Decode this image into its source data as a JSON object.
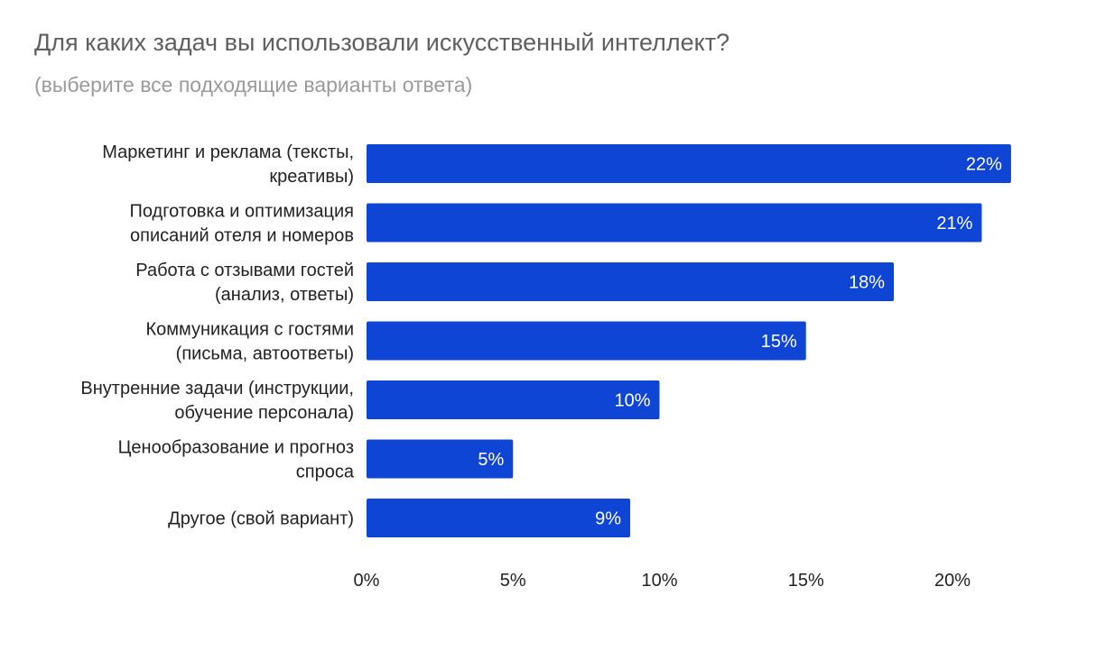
{
  "chart_data": {
    "type": "bar",
    "orientation": "horizontal",
    "title": "Для каких задач вы использовали искусственный интеллект?",
    "subtitle": "(выберите все подходящие варианты ответа)",
    "categories": [
      [
        "Маркетинг и реклама (тексты,",
        "креативы)"
      ],
      [
        "Подготовка и оптимизация",
        "описаний отеля и номеров"
      ],
      [
        "Работа с отзывами гостей",
        "(анализ, ответы)"
      ],
      [
        "Коммуникация с гостями",
        "(письма, автоответы)"
      ],
      [
        "Внутренние задачи (инструкции,",
        "обучение персонала)"
      ],
      [
        "Ценообразование и прогноз",
        "спроса"
      ],
      [
        "Другое (свой вариант)"
      ]
    ],
    "values": [
      22,
      21,
      18,
      15,
      10,
      5,
      9
    ],
    "value_labels": [
      "22%",
      "21%",
      "18%",
      "15%",
      "10%",
      "5%",
      "9%"
    ],
    "x_ticks": [
      0,
      5,
      10,
      15,
      20
    ],
    "x_tick_labels": [
      "0%",
      "5%",
      "10%",
      "15%",
      "20%"
    ],
    "xlim": [
      0,
      22
    ],
    "xlabel": "",
    "ylabel": "",
    "grid": false,
    "bar_color": "#0f45d4",
    "value_label_color": "#ffffff"
  }
}
